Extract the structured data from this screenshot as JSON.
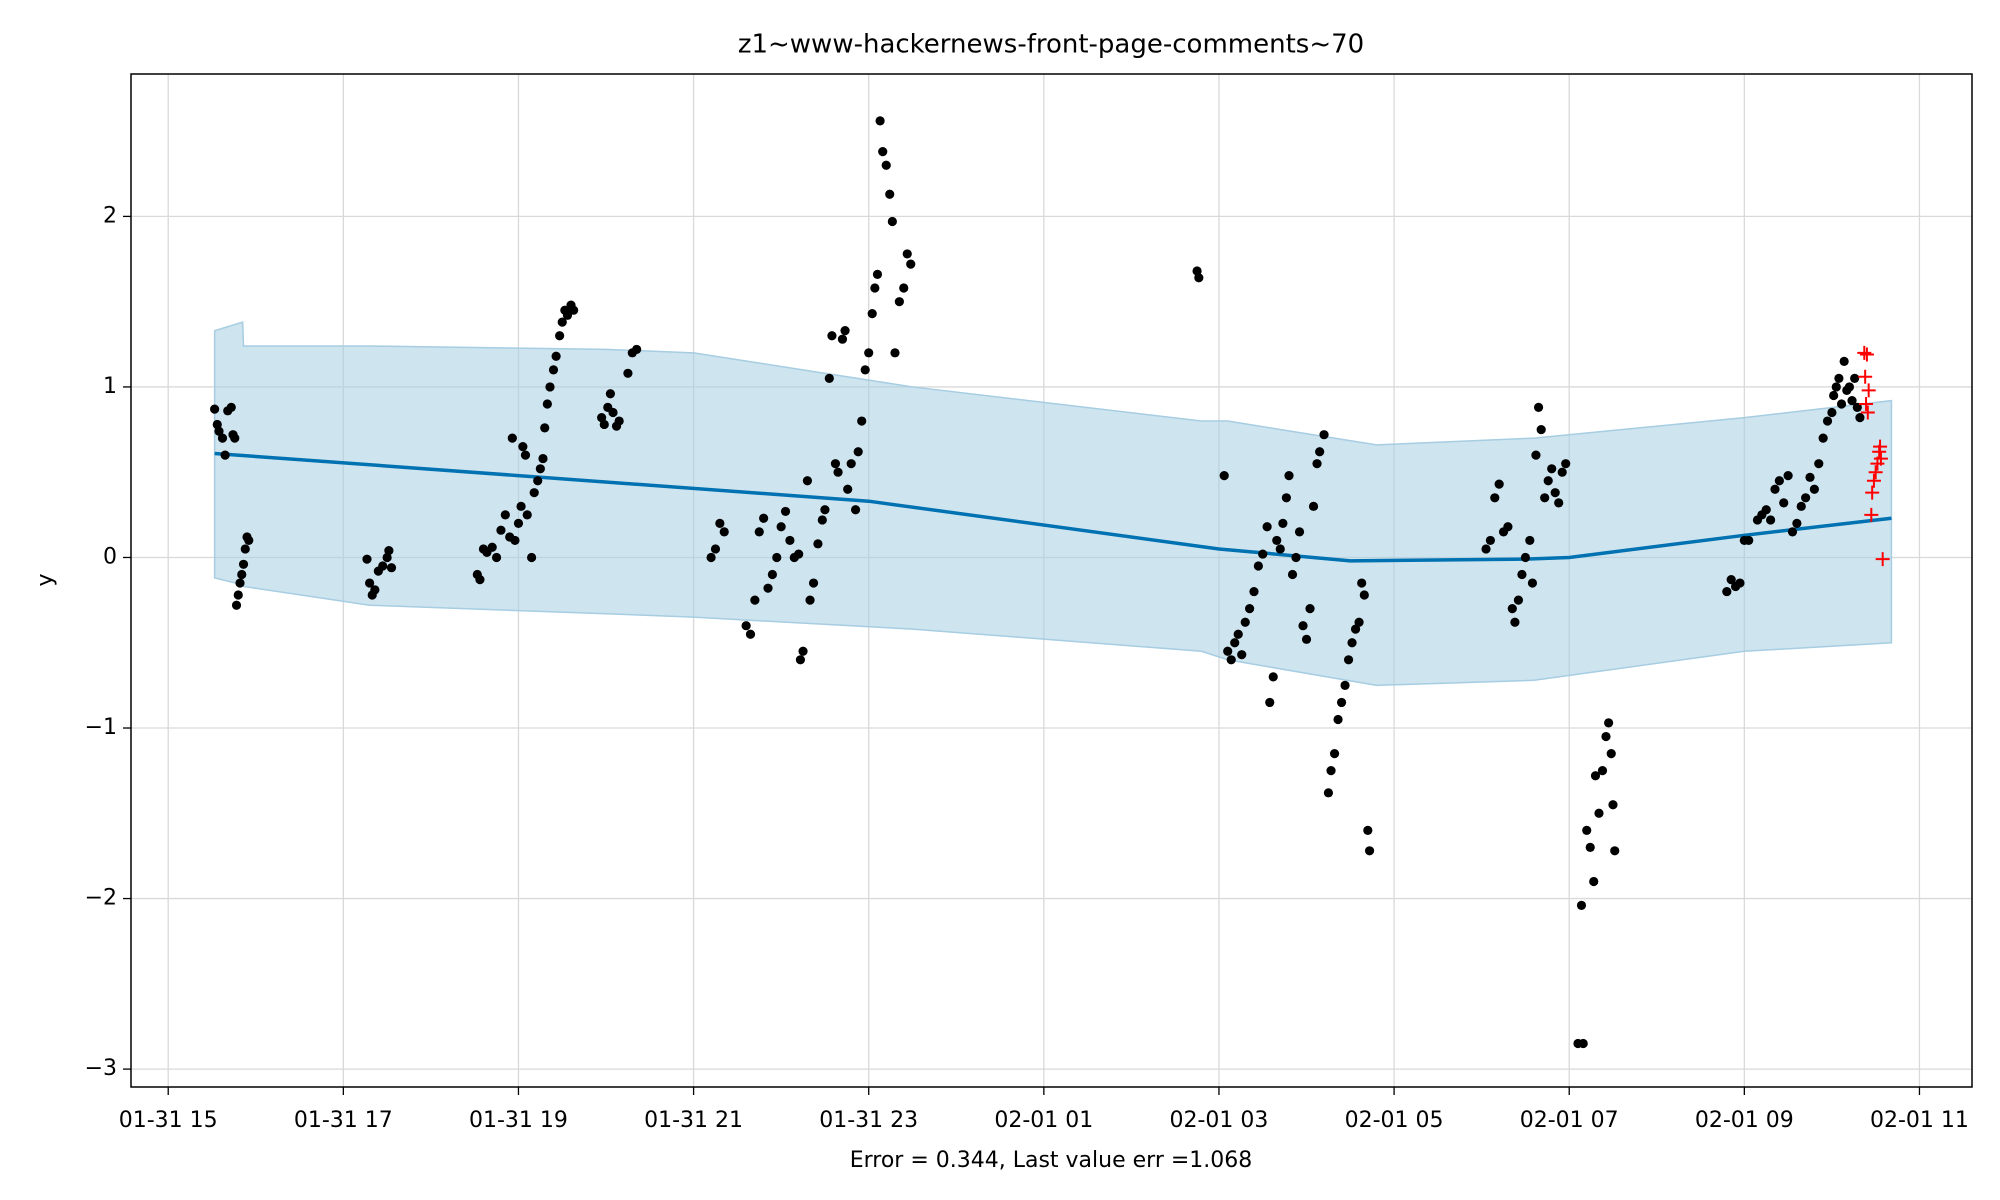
{
  "chart_data": {
    "type": "line",
    "title": "z1~www-hackernews-front-page-comments~70",
    "x_label": "Error = 0.344, Last value err =1.068",
    "y_label": "y",
    "grid": true,
    "xlim": [
      14.575,
      35.6
    ],
    "ylim": [
      -3.105,
      2.835
    ],
    "xticks": [
      {
        "value": 15,
        "label": "01-31 15"
      },
      {
        "value": 17,
        "label": "01-31 17"
      },
      {
        "value": 19,
        "label": "01-31 19"
      },
      {
        "value": 21,
        "label": "01-31 21"
      },
      {
        "value": 23,
        "label": "01-31 23"
      },
      {
        "value": 25,
        "label": "02-01 01"
      },
      {
        "value": 27,
        "label": "02-01 03"
      },
      {
        "value": 29,
        "label": "02-01 05"
      },
      {
        "value": 31,
        "label": "02-01 07"
      },
      {
        "value": 33,
        "label": "02-01 09"
      },
      {
        "value": 35,
        "label": "02-01 11"
      }
    ],
    "yticks": [
      {
        "value": -3,
        "label": "−3"
      },
      {
        "value": -2,
        "label": "−2"
      },
      {
        "value": -1,
        "label": "−1"
      },
      0,
      1,
      2
    ],
    "band": {
      "color": "#a6cde2",
      "x": [
        15.53,
        15.85,
        15.86,
        17.3,
        20,
        21,
        23.5,
        26.8,
        27.1,
        28.8,
        30.6,
        33,
        34.68
      ],
      "upper": [
        1.33,
        1.38,
        1.24,
        1.24,
        1.22,
        1.2,
        1.0,
        0.8,
        0.8,
        0.66,
        0.7,
        0.82,
        0.92
      ],
      "lower": [
        -0.12,
        -0.16,
        -0.17,
        -0.28,
        -0.33,
        -0.35,
        -0.42,
        -0.55,
        -0.6,
        -0.75,
        -0.72,
        -0.55,
        -0.5
      ]
    },
    "trend": {
      "color": "#0072b2",
      "x": [
        15.53,
        23,
        27,
        28.5,
        30.5,
        31,
        33,
        34.68
      ],
      "values": [
        0.61,
        0.33,
        0.05,
        -0.02,
        -0.01,
        0.0,
        0.13,
        0.23
      ]
    },
    "observed": {
      "color": "#000000",
      "x": [
        15.53,
        15.56,
        15.58,
        15.62,
        15.65,
        15.68,
        15.72,
        15.74,
        15.76,
        15.78,
        15.8,
        15.82,
        15.84,
        15.86,
        15.88,
        15.9,
        15.92,
        17.27,
        17.3,
        17.33,
        17.36,
        17.4,
        17.45,
        17.5,
        17.52,
        17.55,
        18.53,
        18.56,
        18.6,
        18.64,
        18.7,
        18.75,
        18.8,
        18.85,
        18.9,
        18.93,
        18.96,
        19.0,
        19.03,
        19.05,
        19.08,
        19.1,
        19.15,
        19.18,
        19.22,
        19.25,
        19.28,
        19.3,
        19.33,
        19.36,
        19.4,
        19.43,
        19.47,
        19.5,
        19.53,
        19.56,
        19.6,
        19.63,
        19.95,
        19.98,
        20.02,
        20.05,
        20.08,
        20.12,
        20.15,
        20.25,
        20.3,
        20.35,
        21.2,
        21.25,
        21.3,
        21.35,
        21.6,
        21.65,
        21.7,
        21.75,
        21.8,
        21.85,
        21.9,
        21.95,
        22.0,
        22.05,
        22.1,
        22.15,
        22.2,
        22.22,
        22.25,
        22.3,
        22.33,
        22.37,
        22.42,
        22.47,
        22.5,
        22.55,
        22.58,
        22.62,
        22.65,
        22.7,
        22.73,
        22.76,
        22.8,
        22.85,
        22.88,
        22.92,
        22.96,
        23.0,
        23.04,
        23.07,
        23.1,
        23.13,
        23.16,
        23.2,
        23.24,
        23.27,
        23.3,
        23.35,
        23.4,
        23.44,
        23.48,
        26.75,
        26.77,
        27.06,
        27.1,
        27.14,
        27.18,
        27.22,
        27.26,
        27.3,
        27.35,
        27.4,
        27.45,
        27.5,
        27.55,
        27.58,
        27.62,
        27.66,
        27.7,
        27.73,
        27.77,
        27.8,
        27.84,
        27.88,
        27.92,
        27.96,
        28.0,
        28.04,
        28.08,
        28.12,
        28.15,
        28.2,
        28.25,
        28.28,
        28.32,
        28.36,
        28.4,
        28.44,
        28.48,
        28.52,
        28.56,
        28.6,
        28.63,
        28.66,
        28.7,
        28.72,
        30.05,
        30.1,
        30.15,
        30.2,
        30.25,
        30.3,
        30.35,
        30.38,
        30.42,
        30.46,
        30.5,
        30.55,
        30.58,
        30.62,
        30.65,
        30.68,
        30.72,
        30.76,
        30.8,
        30.84,
        30.88,
        30.92,
        30.96,
        31.1,
        31.14,
        31.16,
        31.2,
        31.24,
        31.28,
        31.3,
        31.34,
        31.38,
        31.42,
        31.45,
        31.48,
        31.52,
        31.5,
        32.8,
        32.85,
        32.9,
        32.95,
        33.0,
        33.05,
        33.15,
        33.2,
        33.25,
        33.3,
        33.35,
        33.4,
        33.45,
        33.5,
        33.55,
        33.6,
        33.65,
        33.7,
        33.75,
        33.8,
        33.85,
        33.9,
        33.95,
        34.0,
        34.02,
        34.05,
        34.08,
        34.11,
        34.14,
        34.17,
        34.2,
        34.23,
        34.26,
        34.29,
        34.32
      ],
      "values": [
        0.87,
        0.78,
        0.74,
        0.7,
        0.6,
        0.86,
        0.88,
        0.72,
        0.7,
        -0.28,
        -0.22,
        -0.15,
        -0.1,
        -0.04,
        0.05,
        0.12,
        0.1,
        -0.01,
        -0.15,
        -0.22,
        -0.19,
        -0.08,
        -0.05,
        0.0,
        0.04,
        -0.06,
        -0.1,
        -0.13,
        0.05,
        0.03,
        0.06,
        0.0,
        0.16,
        0.25,
        0.12,
        0.7,
        0.1,
        0.2,
        0.3,
        0.65,
        0.6,
        0.25,
        0.0,
        0.38,
        0.45,
        0.52,
        0.58,
        0.76,
        0.9,
        1.0,
        1.1,
        1.18,
        1.3,
        1.38,
        1.45,
        1.42,
        1.48,
        1.45,
        0.82,
        0.78,
        0.88,
        0.96,
        0.85,
        0.77,
        0.8,
        1.08,
        1.2,
        1.22,
        0.0,
        0.05,
        0.2,
        0.15,
        -0.4,
        -0.45,
        -0.25,
        0.15,
        0.23,
        -0.18,
        -0.1,
        0.0,
        0.18,
        0.27,
        0.1,
        0.0,
        0.02,
        -0.6,
        -0.55,
        0.45,
        -0.25,
        -0.15,
        0.08,
        0.22,
        0.28,
        1.05,
        1.3,
        0.55,
        0.5,
        1.28,
        1.33,
        0.4,
        0.55,
        0.28,
        0.62,
        0.8,
        1.1,
        1.2,
        1.43,
        1.58,
        1.66,
        2.56,
        2.38,
        2.3,
        2.13,
        1.97,
        1.2,
        1.5,
        1.58,
        1.78,
        1.72,
        1.68,
        1.64,
        0.48,
        -0.55,
        -0.6,
        -0.5,
        -0.45,
        -0.57,
        -0.38,
        -0.3,
        -0.2,
        -0.05,
        0.02,
        0.18,
        -0.85,
        -0.7,
        0.1,
        0.05,
        0.2,
        0.35,
        0.48,
        -0.1,
        0.0,
        0.15,
        -0.4,
        -0.48,
        -0.3,
        0.3,
        0.55,
        0.62,
        0.72,
        -1.38,
        -1.25,
        -1.15,
        -0.95,
        -0.85,
        -0.75,
        -0.6,
        -0.5,
        -0.42,
        -0.38,
        -0.15,
        -0.22,
        -1.6,
        -1.72,
        0.05,
        0.1,
        0.35,
        0.43,
        0.15,
        0.18,
        -0.3,
        -0.38,
        -0.25,
        -0.1,
        0.0,
        0.1,
        -0.15,
        0.6,
        0.88,
        0.75,
        0.35,
        0.45,
        0.52,
        0.38,
        0.32,
        0.5,
        0.55,
        -2.85,
        -2.04,
        -2.85,
        -1.6,
        -1.7,
        -1.9,
        -1.28,
        -1.5,
        -1.25,
        -1.05,
        -0.97,
        -1.15,
        -1.72,
        -1.45,
        -0.2,
        -0.13,
        -0.17,
        -0.15,
        0.1,
        0.1,
        0.22,
        0.25,
        0.28,
        0.22,
        0.4,
        0.45,
        0.32,
        0.48,
        0.15,
        0.2,
        0.3,
        0.35,
        0.47,
        0.4,
        0.55,
        0.7,
        0.8,
        0.85,
        0.95,
        1.0,
        1.05,
        0.9,
        1.15,
        0.98,
        1.0,
        0.92,
        1.05,
        0.88,
        0.82
      ]
    },
    "future": {
      "color": "#ff0000",
      "marker": "+",
      "x": [
        34.37,
        34.4,
        34.38,
        34.42,
        34.39,
        34.41,
        34.45,
        34.46,
        34.48,
        34.5,
        34.52,
        34.54,
        34.56,
        34.55,
        34.58
      ],
      "values": [
        1.2,
        1.19,
        1.06,
        0.98,
        0.9,
        0.85,
        0.25,
        0.38,
        0.45,
        0.5,
        0.55,
        0.62,
        0.58,
        0.65,
        -0.01
      ]
    }
  }
}
